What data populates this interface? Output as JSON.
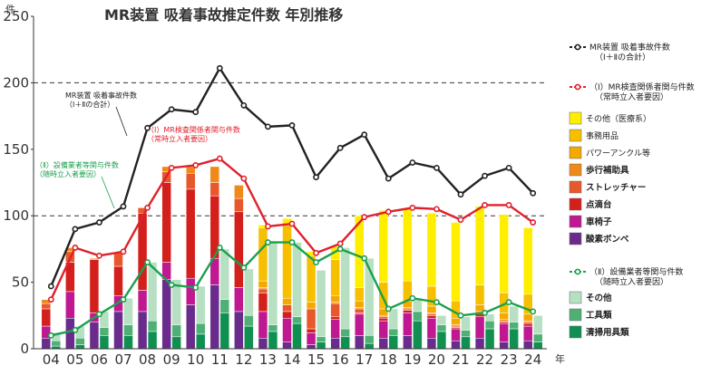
{
  "chart_data": {
    "type": "bar",
    "title": "MR装置 吸着事故推定件数 年別推移",
    "y_unit": "件",
    "x_unit": "年",
    "ylim": [
      0,
      250
    ],
    "yticks": [
      0,
      50,
      100,
      150,
      200,
      250
    ],
    "grid": "dashed lines at 100 and 200",
    "legend_position": "right",
    "categories": [
      "04",
      "05",
      "06",
      "07",
      "08",
      "09",
      "10",
      "11",
      "12",
      "13",
      "14",
      "15",
      "16",
      "17",
      "18",
      "19",
      "20",
      "21",
      "22",
      "23",
      "24"
    ],
    "bar_groups": {
      "group_I": {
        "stack_order": [
          "酸素ボンベ",
          "車椅子",
          "点滴台",
          "ストレッチャー",
          "歩行補助具",
          "パワーアンクル等",
          "事務用品",
          "その他（医療系）"
        ],
        "series": [
          {
            "name": "酸素ボンベ",
            "values": [
              8,
              23,
              20,
              28,
              28,
              52,
              33,
              48,
              28,
              8,
              5,
              3,
              8,
              10,
              8,
              10,
              8,
              6,
              8,
              5,
              6
            ]
          },
          {
            "name": "車椅子",
            "values": [
              9,
              20,
              7,
              12,
              16,
              13,
              20,
              20,
              18,
              20,
              18,
              9,
              14,
              16,
              13,
              17,
              15,
              9,
              16,
              14,
              11
            ]
          },
          {
            "name": "点滴台",
            "values": [
              13,
              22,
              40,
              22,
              58,
              60,
              67,
              47,
              57,
              14,
              5,
              3,
              2,
              1,
              2,
              2,
              2,
              1,
              2,
              1,
              2
            ]
          },
          {
            "name": "ストレッチャー",
            "values": [
              4,
              8,
              0,
              10,
              4,
              8,
              12,
              10,
              10,
              3,
              5,
              15,
              10,
              3,
              1,
              1,
              1,
              1,
              1,
              1,
              1
            ]
          },
          {
            "name": "歩行補助具",
            "values": [
              3,
              3,
              1,
              0,
              0,
              4,
              5,
              12,
              10,
              1,
              0,
              0,
              1,
              1,
              1,
              1,
              1,
              1,
              1,
              1,
              1
            ]
          },
          {
            "name": "パワーアンクル等",
            "values": [
              0,
              0,
              0,
              0,
              0,
              0,
              0,
              0,
              0,
              5,
              5,
              5,
              5,
              5,
              5,
              5,
              5,
              5,
              5,
              5,
              5
            ]
          },
          {
            "name": "事務用品",
            "values": [
              0,
              0,
              0,
              0,
              0,
              0,
              0,
              0,
              0,
              40,
              55,
              35,
              27,
              10,
              20,
              15,
              15,
              13,
              15,
              15,
              15
            ]
          },
          {
            "name": "その他（医療系）",
            "values": [
              0,
              0,
              0,
              0,
              0,
              0,
              0,
              0,
              0,
              2,
              5,
              3,
              10,
              54,
              54,
              55,
              55,
              59,
              59,
              59,
              50
            ]
          }
        ]
      },
      "group_II": {
        "stack_order": [
          "清掃用具類",
          "工具類",
          "その他"
        ],
        "series": [
          {
            "name": "清掃用具類",
            "values": [
              2,
              3,
              10,
              10,
              13,
              9,
              11,
              27,
              17,
              13,
              19,
              5,
              9,
              4,
              10,
              21,
              13,
              9,
              15,
              15,
              5
            ]
          },
          {
            "name": "工具類",
            "values": [
              4,
              5,
              6,
              8,
              8,
              9,
              8,
              10,
              8,
              5,
              5,
              4,
              6,
              6,
              5,
              7,
              5,
              5,
              6,
              5,
              6
            ]
          },
          {
            "name": "その他",
            "values": [
              6,
              9,
              12,
              20,
              44,
              34,
              28,
              38,
              35,
              63,
              56,
              50,
              61,
              58,
              15,
              10,
              7,
              10,
              5,
              12,
              14
            ]
          }
        ]
      }
    },
    "lines": [
      {
        "name": "MR装置 吸着事故件数（Ⅰ＋Ⅱの合計）",
        "color": "#222222",
        "values": [
          47,
          90,
          95,
          107,
          166,
          180,
          178,
          211,
          183,
          167,
          168,
          129,
          151,
          161,
          128,
          140,
          136,
          116,
          130,
          136,
          117
        ]
      },
      {
        "name": "（Ⅰ）MR検査関係者関与件数（常時立入者要因）",
        "color": "#e0202c",
        "values": [
          37,
          76,
          70,
          73,
          106,
          136,
          138,
          143,
          128,
          92,
          94,
          72,
          79,
          99,
          103,
          106,
          105,
          97,
          108,
          108,
          95
        ]
      },
      {
        "name": "（Ⅱ）設備業者等関与件数（随時立入者要因）",
        "color": "#1aa04e",
        "values": [
          10,
          14,
          26,
          37,
          65,
          48,
          46,
          76,
          61,
          80,
          80,
          65,
          75,
          68,
          30,
          38,
          35,
          25,
          27,
          35,
          28
        ]
      }
    ],
    "annotations": [
      {
        "lines": [
          "MR装置 吸着事故件数",
          "（Ⅰ＋Ⅱの合計）"
        ],
        "color": "#222222"
      },
      {
        "lines": [
          "（Ⅰ）MR検査関係者関与件数",
          "（常時立入者要因）"
        ],
        "color": "#e0202c"
      },
      {
        "lines": [
          "（Ⅱ）設備業者等関与件数",
          "（随時立入者要因）"
        ],
        "color": "#1aa04e"
      }
    ]
  },
  "legend": {
    "lines": [
      {
        "line1": "MR装置 吸着事故件数",
        "line2": "（Ⅰ＋Ⅱの合計）",
        "color": "#222222"
      },
      {
        "line1": "（Ⅰ）MR検査関係者関与件数",
        "line2": "（常時立入者要因）",
        "color": "#e0202c"
      },
      {
        "line1": "（Ⅱ）設備業者等関与件数",
        "line2": "（随時立入者要因）",
        "color": "#1aa04e"
      }
    ],
    "group_I_items": [
      {
        "label": "その他（医療系）",
        "color": "#ffee00"
      },
      {
        "label": "事務用品",
        "color": "#f6c000"
      },
      {
        "label": "パワーアンクル等",
        "color": "#f5a800"
      },
      {
        "label": "歩行補助具",
        "color": "#ef8a1a"
      },
      {
        "label": "ストレッチャー",
        "color": "#e8582a"
      },
      {
        "label": "点滴台",
        "color": "#d4201c"
      },
      {
        "label": "車椅子",
        "color": "#c01890"
      },
      {
        "label": "酸素ボンベ",
        "color": "#6a2c8c"
      }
    ],
    "group_II_items": [
      {
        "label": "その他",
        "color": "#b7e0c2"
      },
      {
        "label": "工具類",
        "color": "#4fb076"
      },
      {
        "label": "清掃用具類",
        "color": "#0f9050"
      }
    ]
  },
  "colors": {
    "group_I": {
      "酸素ボンベ": "#6a2c8c",
      "車椅子": "#c01890",
      "点滴台": "#d4201c",
      "ストレッチャー": "#e8582a",
      "歩行補助具": "#ef8a1a",
      "パワーアンクル等": "#f5a800",
      "事務用品": "#f6c000",
      "その他（医療系）": "#ffee00"
    },
    "group_II": {
      "清掃用具類": "#0f9050",
      "工具類": "#4fb076",
      "その他": "#b7e0c2"
    }
  }
}
